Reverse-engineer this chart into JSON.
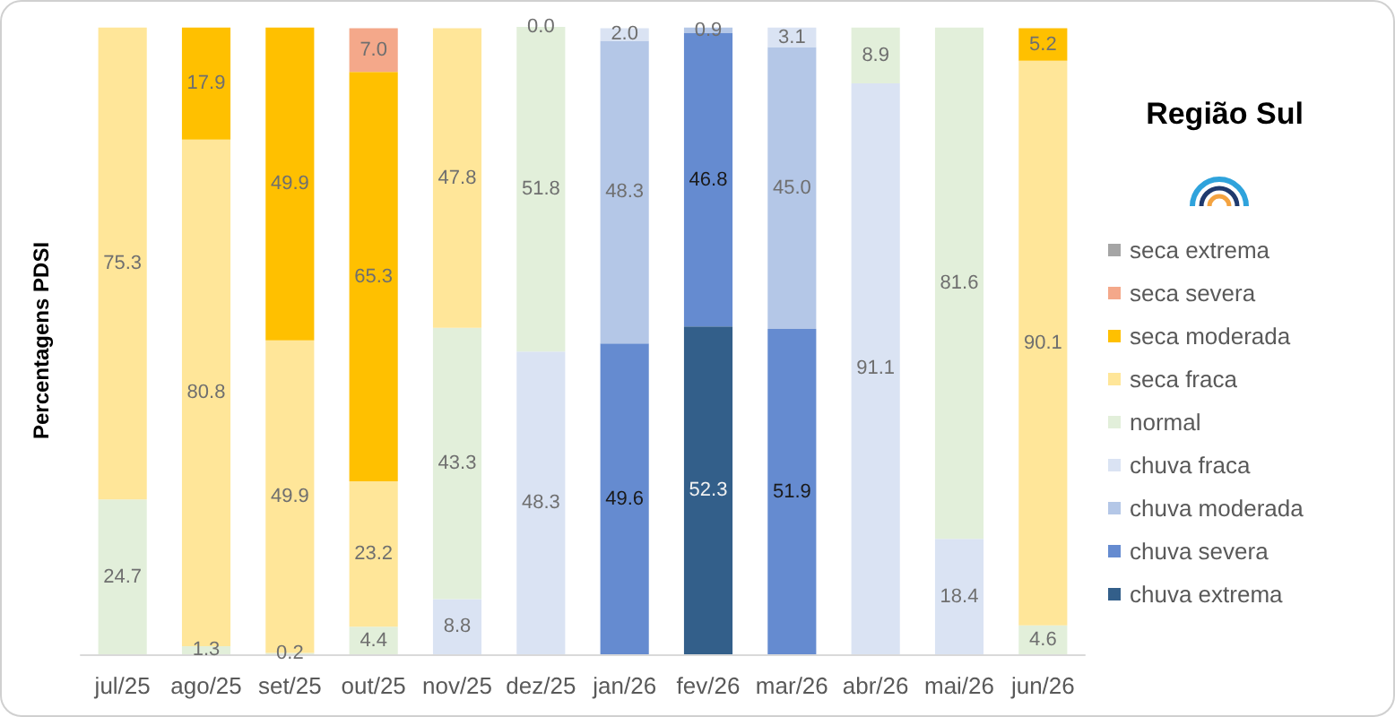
{
  "chart_data": {
    "type": "bar",
    "title": "Região Sul",
    "ylabel": "Percentagens PDSI",
    "categories": [
      "jul/25",
      "ago/25",
      "set/25",
      "out/25",
      "nov/25",
      "dez/25",
      "jan/26",
      "fev/26",
      "mar/26",
      "abr/26",
      "mai/26",
      "jun/26"
    ],
    "stacked": true,
    "ylim": [
      0,
      100.1
    ],
    "tick_labels": "x",
    "grid": false,
    "legend": "right",
    "series": [
      {
        "name": "chuva extrema",
        "color": "#335f8a",
        "values": [
          null,
          null,
          null,
          null,
          null,
          null,
          null,
          52.3,
          null,
          null,
          null,
          null
        ],
        "value_labels": [
          null,
          null,
          null,
          null,
          null,
          null,
          null,
          "52.3",
          null,
          null,
          null,
          null
        ]
      },
      {
        "name": "chuva severa",
        "color": "#658bd0",
        "values": [
          null,
          null,
          null,
          null,
          null,
          null,
          49.6,
          46.8,
          51.9,
          null,
          null,
          null
        ],
        "value_labels": [
          null,
          null,
          null,
          null,
          null,
          null,
          "49.6",
          "46.8",
          "51.9",
          null,
          null,
          null
        ]
      },
      {
        "name": "chuva moderada",
        "color": "#b4c7e7",
        "values": [
          null,
          null,
          null,
          null,
          null,
          null,
          48.3,
          0.9,
          45.0,
          null,
          null,
          null
        ],
        "value_labels": [
          null,
          null,
          null,
          null,
          null,
          null,
          "48.3",
          "0.9",
          "45.0",
          null,
          null,
          null
        ]
      },
      {
        "name": "chuva fraca",
        "color": "#dae3f3",
        "values": [
          null,
          null,
          null,
          null,
          8.8,
          48.3,
          2.0,
          null,
          3.1,
          91.1,
          18.4,
          null
        ],
        "value_labels": [
          null,
          null,
          null,
          null,
          "8.8",
          "48.3",
          "2.0",
          null,
          "3.1",
          "91.1",
          "18.4",
          null
        ]
      },
      {
        "name": "normal",
        "color": "#e2efda",
        "values": [
          24.7,
          1.3,
          0.2,
          4.4,
          43.3,
          51.8,
          null,
          null,
          null,
          8.9,
          81.6,
          4.6
        ],
        "value_labels": [
          "24.7",
          "1.3",
          "0.2",
          "4.4",
          "43.3",
          "51.8",
          null,
          null,
          null,
          "8.9",
          "81.6",
          "4.6"
        ]
      },
      {
        "name": "seca fraca",
        "color": "#ffe699",
        "values": [
          75.3,
          80.8,
          49.9,
          23.2,
          47.8,
          0.0,
          null,
          null,
          null,
          null,
          null,
          90.1
        ],
        "value_labels": [
          "75.3",
          "80.8",
          "49.9",
          "23.2",
          "47.8",
          "0.0",
          null,
          null,
          null,
          null,
          null,
          "90.1"
        ]
      },
      {
        "name": "seca moderada",
        "color": "#ffc000",
        "values": [
          null,
          17.9,
          49.9,
          65.3,
          null,
          null,
          null,
          null,
          null,
          null,
          null,
          5.2
        ],
        "value_labels": [
          null,
          "17.9",
          "49.9",
          "65.3",
          null,
          null,
          null,
          null,
          null,
          null,
          null,
          "5.2"
        ]
      },
      {
        "name": "seca severa",
        "color": "#f4a88a",
        "values": [
          null,
          null,
          null,
          7.0,
          null,
          null,
          null,
          null,
          null,
          null,
          null,
          null
        ],
        "value_labels": [
          null,
          null,
          null,
          "7.0",
          null,
          null,
          null,
          null,
          null,
          null,
          null,
          null
        ]
      },
      {
        "name": "seca extrema",
        "color": "#a5a5a5",
        "values": [
          null,
          null,
          null,
          null,
          null,
          null,
          null,
          null,
          null,
          null,
          null,
          null
        ]
      }
    ]
  }
}
